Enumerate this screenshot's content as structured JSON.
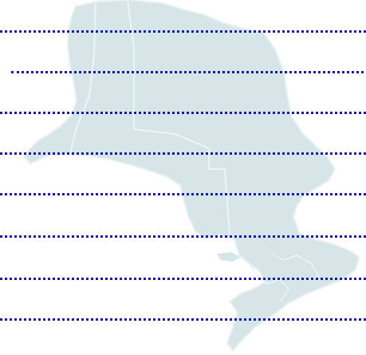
{
  "map": {
    "region_name": "Ontario",
    "fill_color": "#d6e5e7",
    "border_color": "#eef4f5",
    "line_color": "#1a1aa8",
    "line_count": 8
  }
}
